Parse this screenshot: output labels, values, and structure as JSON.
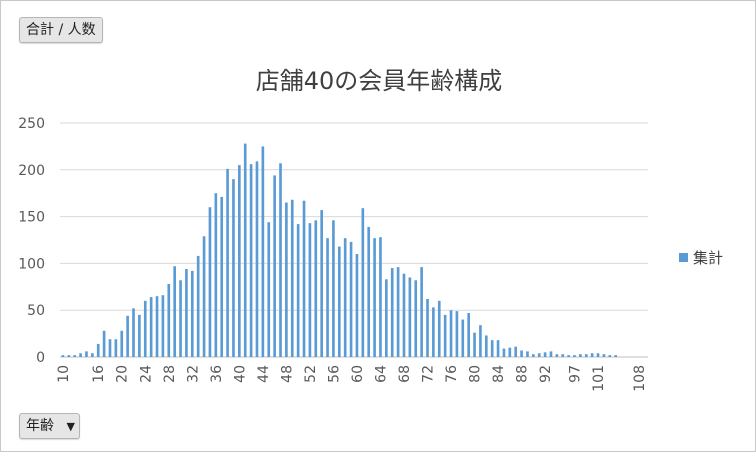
{
  "filters": {
    "value_field": "合計 / 人数",
    "row_field": "年齢",
    "row_field_icon": "dropdown-arrow-icon"
  },
  "chart_data": {
    "type": "bar",
    "title": "店舗40の会員年齢構成",
    "ylim": [
      0,
      250
    ],
    "yticks": [
      0,
      50,
      100,
      150,
      200,
      250
    ],
    "grid": true,
    "legend_position": "right",
    "color": "#5b9bd5",
    "series": [
      {
        "name": "集計",
        "categories": [
          10,
          11,
          12,
          13,
          14,
          15,
          16,
          17,
          18,
          19,
          20,
          21,
          22,
          23,
          24,
          25,
          26,
          27,
          28,
          29,
          30,
          31,
          32,
          33,
          34,
          35,
          36,
          37,
          38,
          39,
          40,
          41,
          42,
          43,
          44,
          45,
          46,
          47,
          48,
          49,
          50,
          51,
          52,
          53,
          54,
          55,
          56,
          57,
          58,
          59,
          60,
          61,
          62,
          63,
          64,
          65,
          66,
          67,
          68,
          69,
          70,
          71,
          72,
          73,
          74,
          75,
          76,
          77,
          78,
          79,
          80,
          81,
          82,
          83,
          84,
          85,
          86,
          87,
          88,
          89,
          90,
          91,
          92,
          93,
          94,
          95,
          96,
          97,
          98,
          99,
          100,
          101,
          102,
          103,
          104,
          105,
          106,
          107,
          108,
          109
        ],
        "values": [
          2,
          2,
          2,
          4,
          6,
          4,
          14,
          28,
          19,
          19,
          28,
          44,
          52,
          45,
          60,
          64,
          65,
          66,
          78,
          97,
          82,
          94,
          92,
          108,
          129,
          160,
          175,
          171,
          201,
          190,
          205,
          228,
          206,
          209,
          225,
          144,
          194,
          207,
          165,
          168,
          142,
          167,
          143,
          146,
          157,
          127,
          146,
          118,
          127,
          123,
          110,
          159,
          139,
          127,
          128,
          83,
          95,
          96,
          89,
          85,
          82,
          96,
          62,
          53,
          60,
          45,
          50,
          49,
          40,
          47,
          26,
          34,
          23,
          18,
          18,
          9,
          10,
          11,
          7,
          6,
          3,
          4,
          5,
          6,
          3,
          3,
          2,
          2,
          3,
          3,
          4,
          4,
          3,
          2,
          2,
          0,
          0,
          0,
          0,
          0
        ]
      }
    ],
    "xtick_labels": [
      "10",
      "16",
      "20",
      "24",
      "28",
      "32",
      "36",
      "40",
      "44",
      "48",
      "52",
      "56",
      "60",
      "64",
      "68",
      "72",
      "76",
      "80",
      "84",
      "88",
      "92",
      "97",
      "101",
      "108"
    ]
  }
}
